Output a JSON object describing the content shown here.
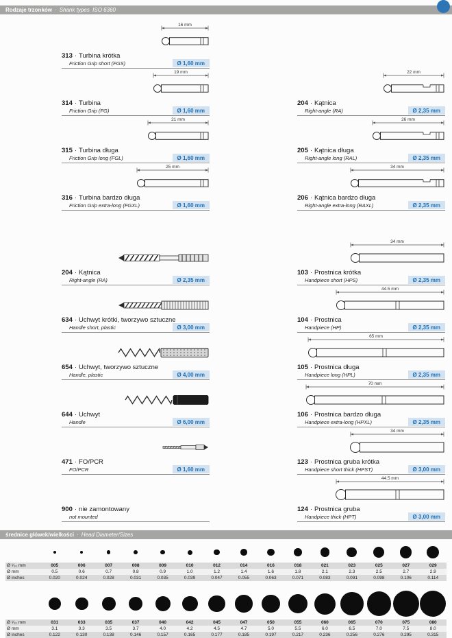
{
  "separator": "·",
  "header": {
    "title_pl": "Rodzaje trzonków",
    "sep": "·",
    "title_en": "Shank types  ISO 6360"
  },
  "sizes_header": {
    "title_pl": "średnice główek/wielkości",
    "sep": "·",
    "title_en": "Head Diameter/Sizes"
  },
  "colors": {
    "accent_blue": "#1c6fb6",
    "badge_bg": "#d3e2f0",
    "bar_gray": "#a5a5a4"
  },
  "catalog": {
    "rows": [
      {
        "left": {
          "code": "313",
          "name": "Turbina krótka",
          "sub": "Friction Grip short (FGS)",
          "badge": "Ø 1,60 mm",
          "dim": "16 mm",
          "dim_mm": 16,
          "img": "fg"
        },
        "right": null
      },
      {
        "left": {
          "code": "314",
          "name": "Turbina",
          "sub": "Friction Grip (FG)",
          "badge": "Ø 1,60 mm",
          "dim": "19 mm",
          "dim_mm": 19,
          "img": "fg"
        },
        "right": {
          "code": "204",
          "name": "Kątnica",
          "sub": "Right-angle (RA)",
          "badge": "Ø 2,35 mm",
          "dim": "22 mm",
          "dim_mm": 22,
          "img": "ra"
        }
      },
      {
        "left": {
          "code": "315",
          "name": "Turbina długa",
          "sub": "Friction Grip long (FGL)",
          "badge": "Ø 1,60 mm",
          "dim": "21 mm",
          "dim_mm": 21,
          "img": "fg"
        },
        "right": {
          "code": "205",
          "name": "Kątnica długa",
          "sub": "Right-angle long (RAL)",
          "badge": "Ø 2,35 mm",
          "dim": "26 mm",
          "dim_mm": 26,
          "img": "ra"
        }
      },
      {
        "left": {
          "code": "316",
          "name": "Turbina bardzo długa",
          "sub": "Friction Grip extra-long (FGXL)",
          "badge": "Ø 1,60 mm",
          "dim": "25 mm",
          "dim_mm": 25,
          "img": "fg"
        },
        "right": {
          "code": "206",
          "name": "Kątnica bardzo długa",
          "sub": "Right-angle extra-long (RAXL)",
          "badge": "Ø 2,35 mm",
          "dim": "34 mm",
          "dim_mm": 34,
          "img": "ra"
        }
      },
      {
        "spacer": true
      },
      {
        "left": {
          "code": "204",
          "name": "Kątnica",
          "sub": "Right-angle (RA)",
          "badge": "Ø 2,35 mm",
          "img": "drill"
        },
        "right": {
          "code": "103",
          "name": "Prostnica krótka",
          "sub": "Handpiece short (HPS)",
          "badge": "Ø 2,35 mm",
          "dim": "34 mm",
          "dim_mm": 34,
          "img": "hp"
        }
      },
      {
        "left": {
          "code": "634",
          "name": "Uchwyt krótki, tworzywo sztuczne",
          "sub": "Handle short, plastic",
          "badge": "Ø 3,00 mm",
          "img": "drill_ribbed"
        },
        "right": {
          "code": "104",
          "name": "Prostnica",
          "sub": "Handpiece (HP)",
          "badge": "Ø 2,35 mm",
          "dim": "44.5 mm",
          "dim_mm": 44.5,
          "img": "hp"
        }
      },
      {
        "left": {
          "code": "654",
          "name": "Uchwyt, tworzywo sztuczne",
          "sub": "Handle, plastic",
          "badge": "Ø 4,00 mm",
          "img": "spiral_dotted"
        },
        "right": {
          "code": "105",
          "name": "Prostnica długa",
          "sub": "Handpiece long (HPL)",
          "badge": "Ø 2,35 mm",
          "dim": "65 mm",
          "dim_mm": 65,
          "img": "hp"
        }
      },
      {
        "left": {
          "code": "644",
          "name": "Uchwyt",
          "sub": "Handle",
          "badge": "Ø 6,00 mm",
          "img": "spiral_dark"
        },
        "right": {
          "code": "106",
          "name": "Prostnica bardzo długa",
          "sub": "Handpiece extra-long (HPXL)",
          "badge": "Ø 2,35 mm",
          "dim": "70 mm",
          "dim_mm": 70,
          "img": "hp"
        }
      },
      {
        "left": {
          "code": "471",
          "name": "FO/PCR",
          "sub": "FO/PCR",
          "badge": "Ø 1,60 mm",
          "img": "pin"
        },
        "right": {
          "code": "123",
          "name": "Prostnica gruba krótka",
          "sub": "Handpiece short thick (HPST)",
          "badge": "Ø 3,00 mm",
          "dim": "34 mm",
          "dim_mm": 34,
          "img": "hp_thick"
        }
      },
      {
        "left": {
          "code": "900",
          "name": "nie zamontowany",
          "sub": "not mounted",
          "img": "none"
        },
        "right": {
          "code": "124",
          "name": "Prostnica gruba",
          "sub": "Handpiece thick (HPT)",
          "badge": "Ø 3,00 mm",
          "dim": "44.5 mm",
          "dim_mm": 44.5,
          "img": "hp_thick"
        }
      }
    ]
  },
  "sizes": {
    "row_labels": {
      "code": "Ø ¹⁄₁₀ mm",
      "mm": "Ø mm",
      "inches": "Ø inches"
    },
    "table1": {
      "codes": [
        "005",
        "006",
        "007",
        "008",
        "009",
        "010",
        "012",
        "014",
        "016",
        "018",
        "021",
        "023",
        "025",
        "027",
        "029"
      ],
      "mm": [
        "0.5",
        "0.6",
        "0.7",
        "0.8",
        "0.9",
        "1.0",
        "1.2",
        "1.4",
        "1.6",
        "1.8",
        "2.1",
        "2.3",
        "2.5",
        "2.7",
        "2.9"
      ],
      "inches": [
        "0.020",
        "0.024",
        "0.028",
        "0.031",
        "0.035",
        "0.039",
        "0.047",
        "0.055",
        "0.063",
        "0.071",
        "0.083",
        "0.091",
        "0.098",
        "0.106",
        "0.114"
      ]
    },
    "table2": {
      "codes": [
        "031",
        "033",
        "035",
        "037",
        "040",
        "042",
        "045",
        "047",
        "050",
        "055",
        "060",
        "065",
        "070",
        "075",
        "080"
      ],
      "mm": [
        "3.1",
        "3.3",
        "3.5",
        "3.7",
        "4.0",
        "4.2",
        "4.5",
        "4.7",
        "5.0",
        "5.5",
        "6.0",
        "6.5",
        "7.0",
        "7.5",
        "8.0"
      ],
      "inches": [
        "0.122",
        "0.130",
        "0.138",
        "0.146",
        "0.157",
        "0.165",
        "0.177",
        "0.185",
        "0.197",
        "0.217",
        "0.236",
        "0.256",
        "0.276",
        "0.295",
        "0.315"
      ]
    }
  }
}
